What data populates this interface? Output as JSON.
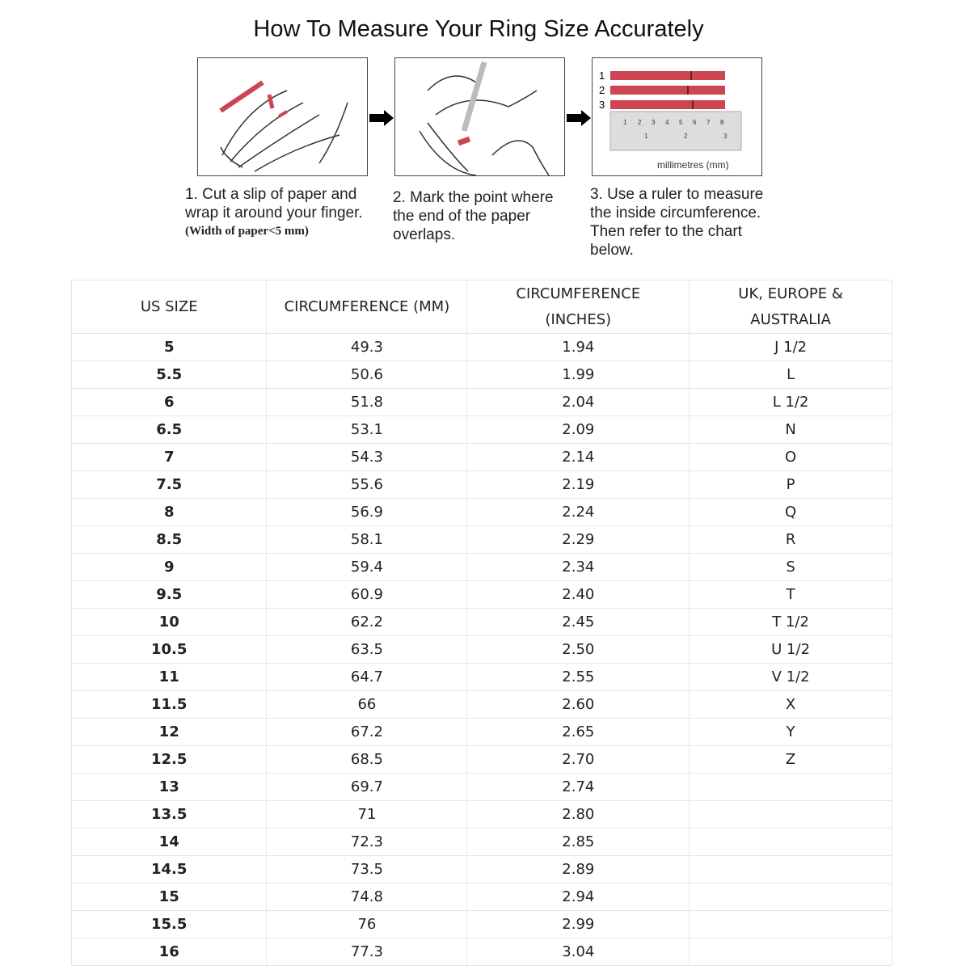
{
  "title": "How To Measure Your Ring Size Accurately",
  "steps": [
    {
      "text": "1. Cut a slip of paper and wrap it around your finger.",
      "note": "(Width of paper<5 mm)"
    },
    {
      "text": "2. Mark the point where the end of the paper overlaps."
    },
    {
      "text": "3. Use a ruler to measure the inside circumference. Then refer to the chart below."
    }
  ],
  "ruler": {
    "strip_labels": [
      "1",
      "2",
      "3"
    ],
    "cm_ticks": [
      "1",
      "2",
      "3",
      "4",
      "5",
      "6",
      "7",
      "8"
    ],
    "inch_ticks": [
      "1",
      "2",
      "3"
    ],
    "unit_label": "millimetres (mm)"
  },
  "colors": {
    "paper_red": "#cc4550",
    "border": "#e6e6e6"
  },
  "table": {
    "headers": [
      "US SIZE",
      "CIRCUMFERENCE (MM)",
      "CIRCUMFERENCE (INCHES)",
      "UK, EUROPE & AUSTRALIA"
    ],
    "rows": [
      [
        "5",
        "49.3",
        "1.94",
        "J 1/2"
      ],
      [
        "5.5",
        "50.6",
        "1.99",
        "L"
      ],
      [
        "6",
        "51.8",
        "2.04",
        "L 1/2"
      ],
      [
        "6.5",
        "53.1",
        "2.09",
        "N"
      ],
      [
        "7",
        "54.3",
        "2.14",
        "O"
      ],
      [
        "7.5",
        "55.6",
        "2.19",
        "P"
      ],
      [
        "8",
        "56.9",
        "2.24",
        "Q"
      ],
      [
        "8.5",
        "58.1",
        "2.29",
        "R"
      ],
      [
        "9",
        "59.4",
        "2.34",
        "S"
      ],
      [
        "9.5",
        "60.9",
        "2.40",
        "T"
      ],
      [
        "10",
        "62.2",
        "2.45",
        "T 1/2"
      ],
      [
        "10.5",
        "63.5",
        "2.50",
        "U 1/2"
      ],
      [
        "11",
        "64.7",
        "2.55",
        "V 1/2"
      ],
      [
        "11.5",
        "66",
        "2.60",
        "X"
      ],
      [
        "12",
        "67.2",
        "2.65",
        "Y"
      ],
      [
        "12.5",
        "68.5",
        "2.70",
        "Z"
      ],
      [
        "13",
        "69.7",
        "2.74",
        ""
      ],
      [
        "13.5",
        "71",
        "2.80",
        ""
      ],
      [
        "14",
        "72.3",
        "2.85",
        ""
      ],
      [
        "14.5",
        "73.5",
        "2.89",
        ""
      ],
      [
        "15",
        "74.8",
        "2.94",
        ""
      ],
      [
        "15.5",
        "76",
        "2.99",
        ""
      ],
      [
        "16",
        "77.3",
        "3.04",
        ""
      ]
    ]
  }
}
